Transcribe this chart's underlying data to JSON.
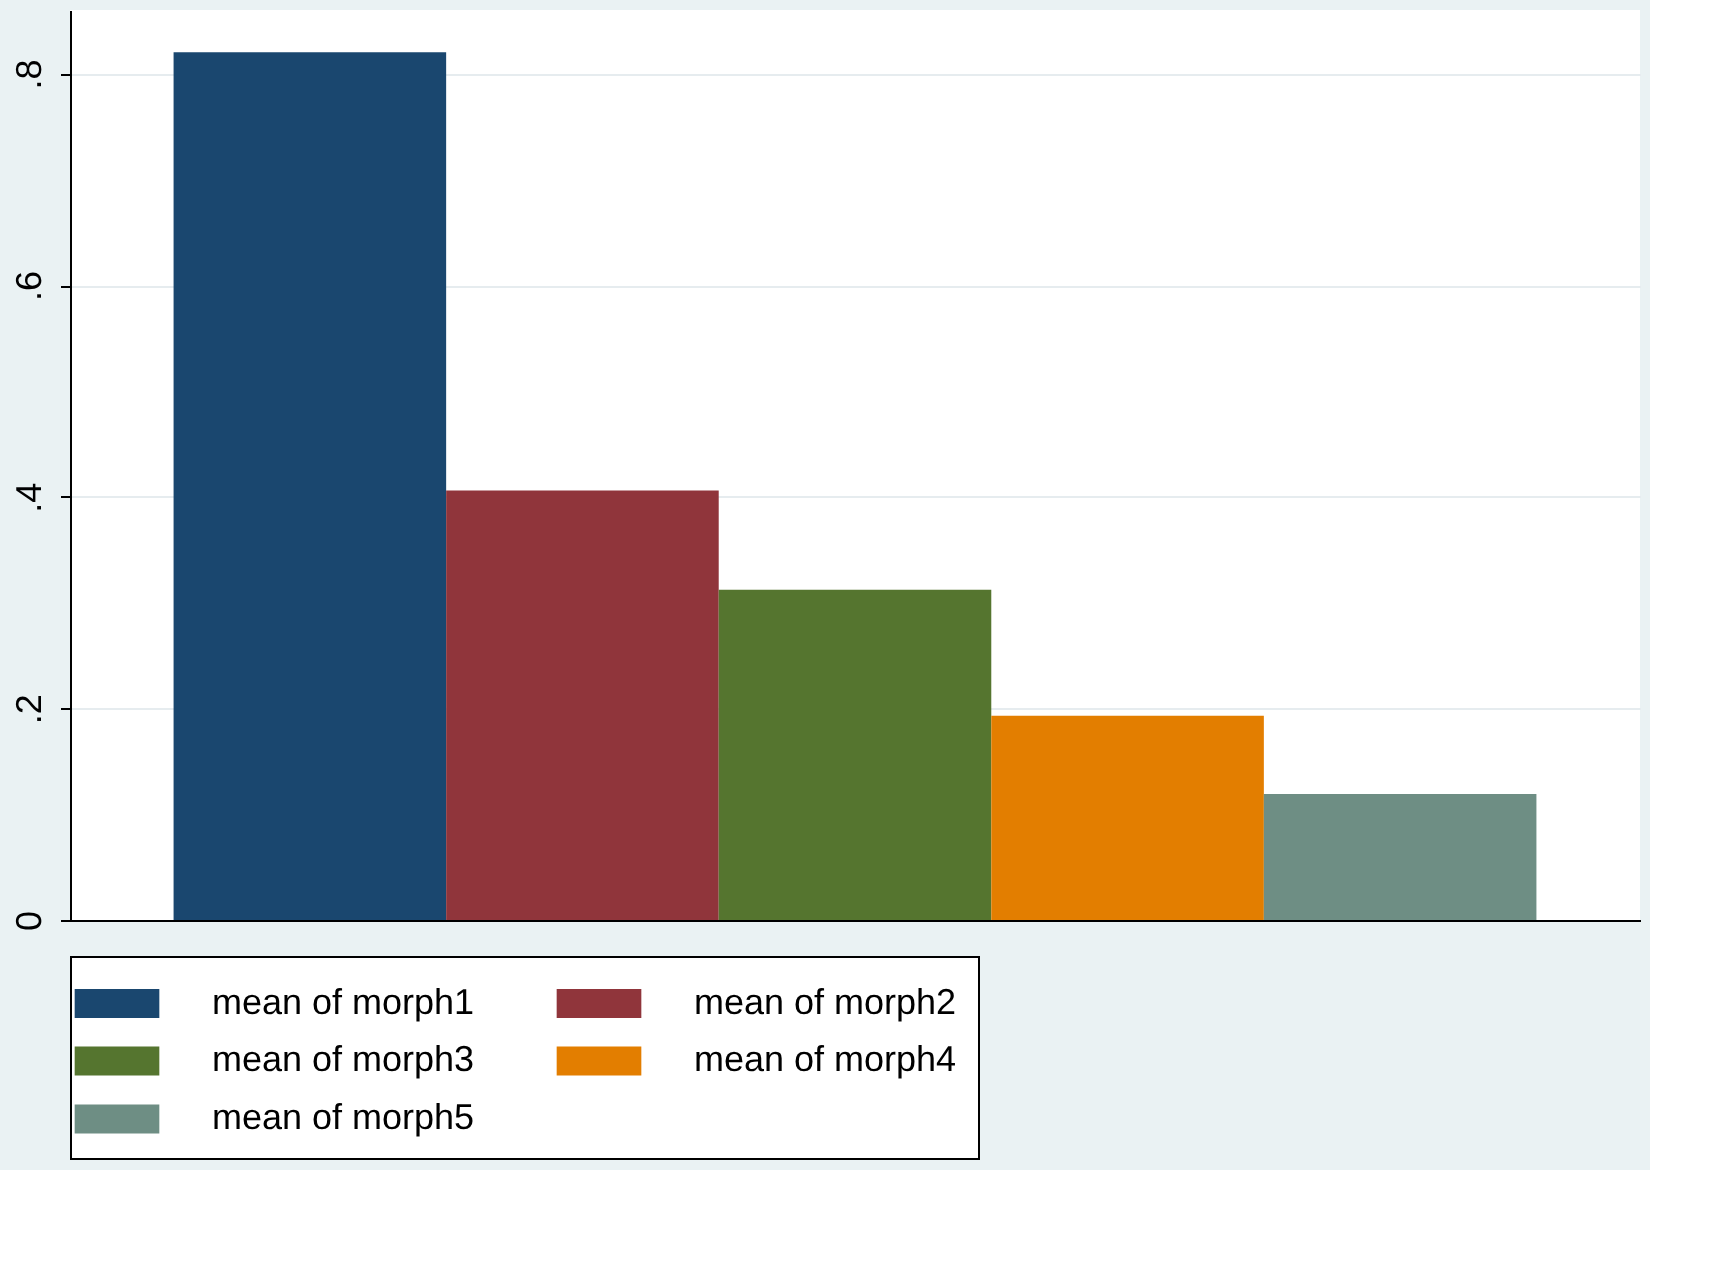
{
  "chart_data": {
    "type": "bar",
    "categories": [
      null
    ],
    "series": [
      {
        "name": "mean of morph1",
        "color": "#1a476f",
        "values": [
          0.82
        ]
      },
      {
        "name": "mean of morph2",
        "color": "#90353b",
        "values": [
          0.406
        ]
      },
      {
        "name": "mean of morph3",
        "color": "#55752f",
        "values": [
          0.312
        ]
      },
      {
        "name": "mean of morph4",
        "color": "#e37e00",
        "values": [
          0.193
        ]
      },
      {
        "name": "mean of morph5",
        "color": "#6e8e84",
        "values": [
          0.119
        ]
      }
    ],
    "ylim": [
      0,
      0.86
    ],
    "yticks": [
      0,
      {
        "value": 0.2,
        "label": ".2"
      },
      {
        "value": 0.4,
        "label": ".4"
      },
      {
        "value": 0.6,
        "label": ".6"
      },
      {
        "value": 0.8,
        "label": ".8"
      }
    ],
    "grid": "y",
    "legend": "bottom"
  }
}
